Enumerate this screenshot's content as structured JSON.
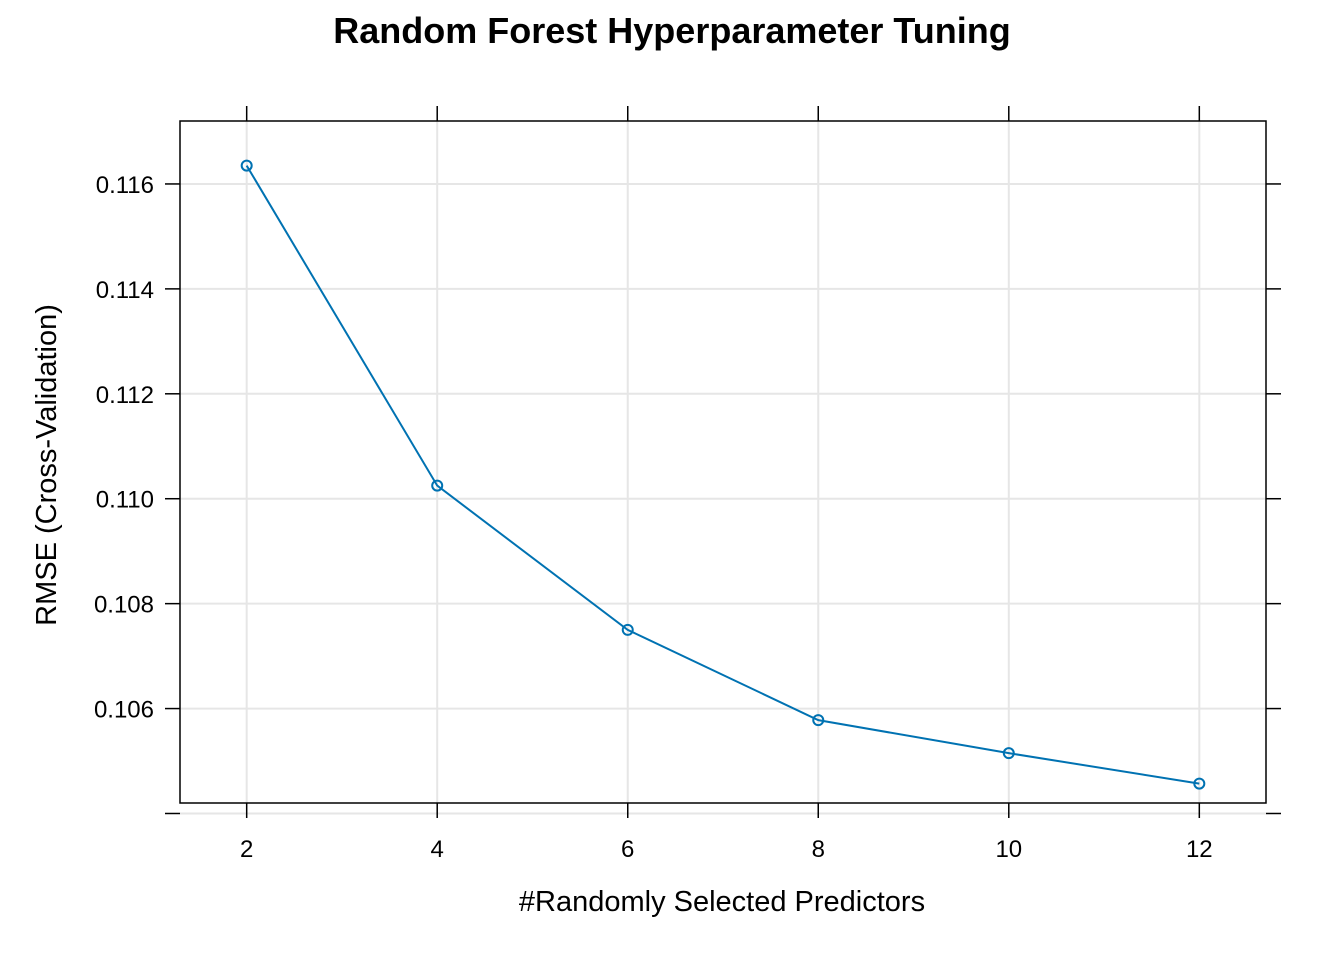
{
  "chart_data": {
    "type": "line",
    "title": "Random Forest Hyperparameter Tuning",
    "xlabel": "#Randomly Selected Predictors",
    "ylabel": "RMSE (Cross-Validation)",
    "x": [
      2,
      4,
      6,
      8,
      10,
      12
    ],
    "series": [
      {
        "values": [
          0.11635,
          0.11025,
          0.1075,
          0.10578,
          0.10515,
          0.10457
        ]
      }
    ],
    "xlim": [
      1.3,
      12.7
    ],
    "ylim": [
      0.1042,
      0.1172
    ],
    "xticks": [
      2,
      4,
      6,
      8,
      10,
      12
    ],
    "xtick_labels": [
      "2",
      "4",
      "6",
      "8",
      "10",
      "12"
    ],
    "yticks": [
      0.104,
      0.106,
      0.108,
      0.11,
      0.112,
      0.114,
      0.116
    ],
    "ytick_labels": [
      "",
      "0.106",
      "0.108",
      "0.110",
      "0.112",
      "0.114",
      "0.116"
    ],
    "grid": true,
    "legend": "none",
    "colors": {
      "line": "#0072B2",
      "grid": "#e6e6e6",
      "frame": "#000000"
    }
  }
}
